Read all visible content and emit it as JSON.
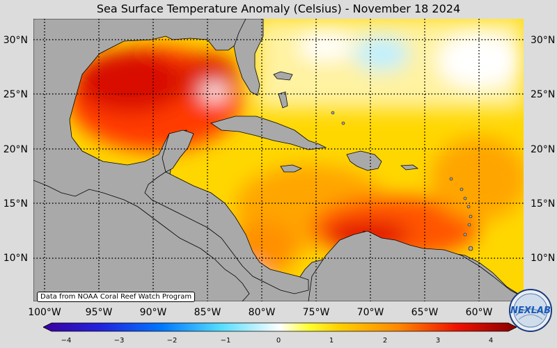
{
  "title": "Sea Surface Temperature Anomaly (Celsius) - November 18 2024",
  "credit": "Data from NOAA Coral Reef Watch Program",
  "logo_text": "NEXLAB",
  "lat_labels": [
    "30°N",
    "25°N",
    "20°N",
    "15°N",
    "10°N"
  ],
  "lon_labels": [
    "100°W",
    "95°W",
    "90°W",
    "85°W",
    "80°W",
    "75°W",
    "70°W",
    "65°W",
    "60°W"
  ],
  "colorbar": {
    "min": -4,
    "max": 4,
    "ticks": [
      "−4",
      "−3",
      "−2",
      "−1",
      "0",
      "1",
      "2",
      "3",
      "4"
    ],
    "colors": [
      "#3a00a0",
      "#0055ff",
      "#33bbff",
      "#ffffff",
      "#ffee00",
      "#ff8800",
      "#dd0000",
      "#880000"
    ]
  },
  "colors": {
    "land": "#a9a9a9",
    "frame_bg": "#dcdcdc"
  }
}
